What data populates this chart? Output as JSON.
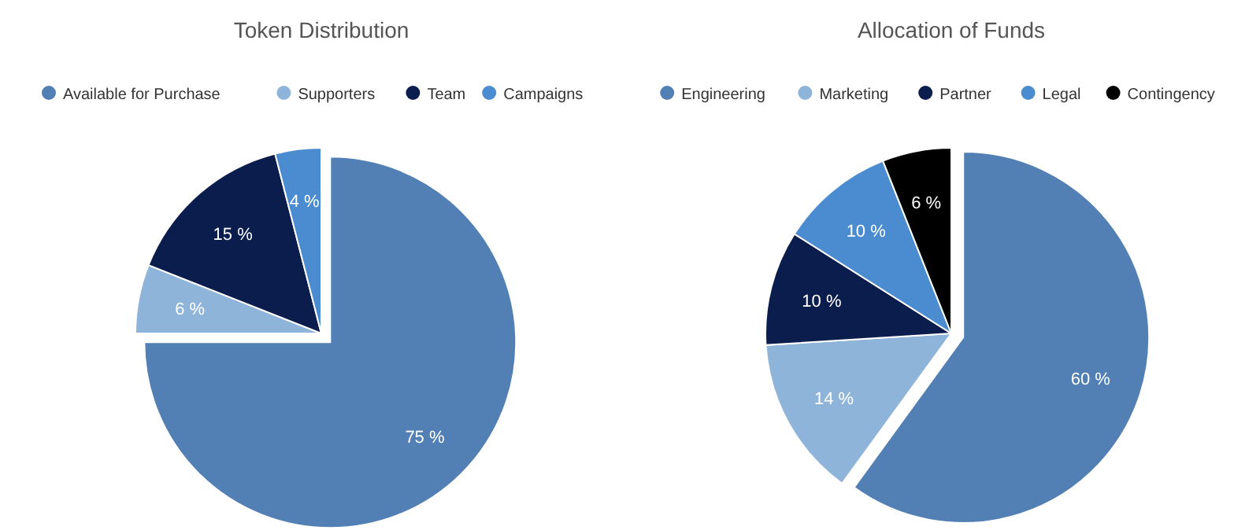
{
  "chart_data": [
    {
      "type": "pie",
      "title": "Token Distribution",
      "categories": [
        "Available for Purchase",
        "Supporters",
        "Team",
        "Campaigns"
      ],
      "values": [
        75,
        6,
        15,
        4
      ],
      "colors": [
        "#5280b4",
        "#8fb4da",
        "#0b1d4d",
        "#4a8ccf"
      ],
      "value_labels": [
        "75 %",
        "6 %",
        "15 %",
        "4 %"
      ],
      "legend": "top"
    },
    {
      "type": "pie",
      "title": "Allocation of Funds",
      "categories": [
        "Engineering",
        "Marketing",
        "Partner",
        "Legal",
        "Contingency"
      ],
      "values": [
        60,
        14,
        10,
        10,
        6
      ],
      "colors": [
        "#5280b4",
        "#8fb4da",
        "#0b1d4d",
        "#4a8ccf",
        "#000000"
      ],
      "value_labels": [
        "60 %",
        "14 %",
        "10 %",
        "10 %",
        "6 %"
      ],
      "legend": "top"
    }
  ]
}
